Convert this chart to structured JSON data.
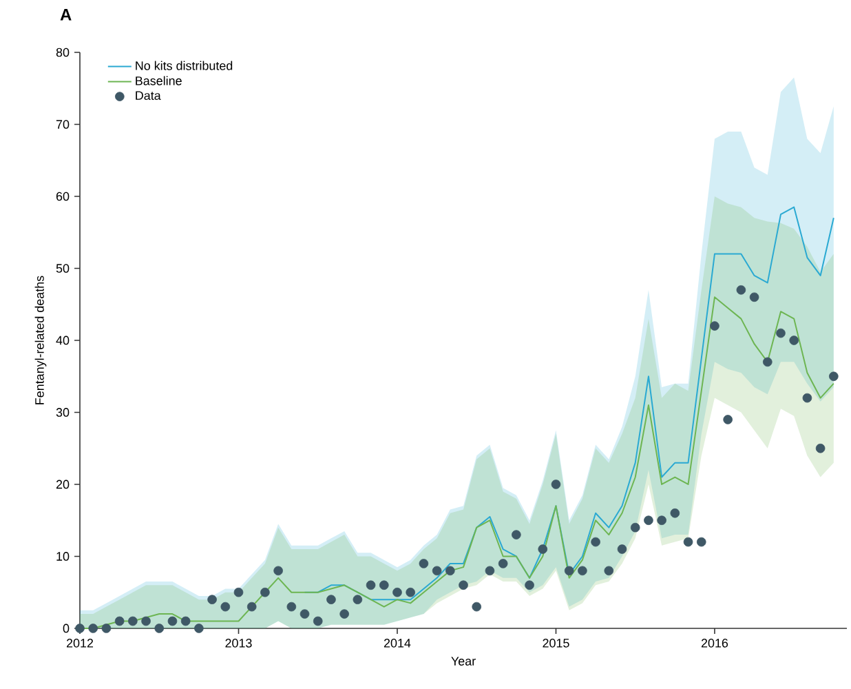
{
  "chart_data": {
    "type": "line",
    "title": "A",
    "xlabel": "Year",
    "ylabel": "Fentanyl-related deaths",
    "x": [
      "2012-01",
      "2012-02",
      "2012-03",
      "2012-04",
      "2012-05",
      "2012-06",
      "2012-07",
      "2012-08",
      "2012-09",
      "2012-10",
      "2012-11",
      "2012-12",
      "2013-01",
      "2013-02",
      "2013-03",
      "2013-04",
      "2013-05",
      "2013-06",
      "2013-07",
      "2013-08",
      "2013-09",
      "2013-10",
      "2013-11",
      "2013-12",
      "2014-01",
      "2014-02",
      "2014-03",
      "2014-04",
      "2014-05",
      "2014-06",
      "2014-07",
      "2014-08",
      "2014-09",
      "2014-10",
      "2014-11",
      "2014-12",
      "2015-01",
      "2015-02",
      "2015-03",
      "2015-04",
      "2015-05",
      "2015-06",
      "2015-07",
      "2015-08",
      "2015-09",
      "2015-10",
      "2015-11",
      "2015-12",
      "2016-01",
      "2016-02",
      "2016-03",
      "2016-04",
      "2016-05",
      "2016-06",
      "2016-07",
      "2016-08",
      "2016-09",
      "2016-10"
    ],
    "series": [
      {
        "name": "No kits distributed",
        "color": "#2aa9d2",
        "values": [
          null,
          null,
          null,
          null,
          null,
          null,
          null,
          null,
          null,
          null,
          null,
          null,
          null,
          null,
          null,
          null,
          null,
          5,
          5,
          6,
          6,
          5,
          4,
          4,
          4,
          4,
          5.5,
          7,
          9,
          9,
          14,
          15.5,
          11,
          10,
          7,
          11,
          17,
          7.5,
          10,
          16,
          14,
          17,
          23,
          35,
          21,
          23,
          23,
          37.5,
          52,
          52,
          52,
          49,
          48,
          57.5,
          58.5,
          51.5,
          49,
          57
        ],
        "lower": [
          0,
          0,
          0,
          0,
          0,
          0,
          0,
          0,
          0,
          0,
          0,
          0,
          0,
          0,
          0,
          1,
          0,
          0,
          0,
          0.5,
          0.5,
          0.5,
          0.5,
          0.5,
          1,
          1.5,
          2,
          4,
          5,
          6,
          6.5,
          8,
          7,
          7,
          5,
          6,
          8.5,
          3,
          4,
          6.5,
          7,
          10,
          13.5,
          22,
          12.5,
          13,
          13,
          27,
          37,
          36,
          35.5,
          33.5,
          32.5,
          37,
          37,
          34,
          31.5,
          33.5
        ],
        "upper": [
          2.5,
          2.5,
          3.5,
          4.5,
          5.5,
          6.5,
          6.5,
          6.5,
          5.5,
          4.5,
          4.5,
          5.5,
          5.5,
          7.5,
          9.5,
          14.5,
          11.5,
          11.5,
          11.5,
          12.5,
          13.5,
          10.5,
          10.5,
          9.5,
          8.5,
          9.5,
          11.5,
          13,
          16.5,
          17,
          24,
          25.5,
          19.5,
          18.5,
          15,
          20.5,
          27.5,
          15,
          18.5,
          25.5,
          23.5,
          28,
          35,
          47,
          33.5,
          34,
          34,
          52,
          68,
          69,
          69,
          64,
          63,
          74.5,
          76.5,
          68,
          66,
          72.5
        ]
      },
      {
        "name": "Baseline",
        "color": "#6db552",
        "values": [
          0,
          0,
          0.5,
          1,
          1,
          1.5,
          2,
          2,
          1,
          1,
          1,
          1,
          1,
          3,
          5,
          7,
          5,
          5,
          5,
          5.5,
          6,
          5,
          4,
          3,
          4,
          3.5,
          5,
          6.5,
          8,
          8.5,
          14,
          15,
          10,
          10,
          7,
          10,
          17,
          7,
          9.5,
          15,
          13,
          16,
          21,
          31,
          20,
          21,
          20,
          33,
          46,
          44.5,
          43,
          39.5,
          37,
          44,
          43,
          35.5,
          32,
          34
        ],
        "lower": [
          0,
          0,
          0,
          0,
          0,
          0,
          0,
          0,
          0,
          0,
          0,
          0,
          0,
          0,
          0,
          1,
          0,
          0,
          0,
          0.5,
          0.5,
          0.5,
          0.5,
          0.5,
          1,
          1.5,
          2,
          3.5,
          4.5,
          5.5,
          6,
          7.5,
          6.5,
          6.5,
          4.5,
          5.5,
          8,
          2.5,
          3.5,
          6,
          6.5,
          9,
          12.5,
          20,
          11.5,
          12,
          12.5,
          24,
          32,
          31,
          30,
          27.5,
          25,
          30.5,
          29.5,
          24,
          21,
          23
        ],
        "upper": [
          2,
          2,
          3,
          4,
          5,
          6,
          6,
          6,
          5,
          4,
          4,
          5,
          5,
          7,
          9,
          14,
          11,
          11,
          11,
          12,
          13,
          10,
          10,
          9,
          8,
          9,
          11,
          12.5,
          16,
          16.5,
          23.5,
          25,
          19,
          18,
          14.5,
          20,
          27,
          14.5,
          18,
          25,
          23,
          27,
          32,
          43,
          32,
          34,
          33,
          47,
          60,
          59,
          58.5,
          57,
          56.5,
          56.3,
          55.5,
          53,
          49.5,
          52
        ]
      },
      {
        "name": "Data",
        "type": "scatter",
        "color": "#3f5866",
        "marker": "circle",
        "values": [
          0,
          0,
          0,
          1,
          1,
          1,
          0,
          1,
          1,
          0,
          4,
          3,
          5,
          3,
          5,
          8,
          3,
          2,
          1,
          4,
          2,
          4,
          6,
          6,
          5,
          5,
          9,
          8,
          8,
          6,
          3,
          8,
          9,
          13,
          6,
          11,
          20,
          8,
          8,
          12,
          8,
          11,
          14,
          15,
          15,
          16,
          12,
          12,
          42,
          29,
          47,
          46,
          37,
          41,
          40,
          32,
          25,
          35
        ]
      }
    ],
    "xlim": [
      "2012-01",
      "2016-11"
    ],
    "xticks": [
      "2012",
      "2013",
      "2014",
      "2015",
      "2016"
    ],
    "ylim": [
      0,
      80
    ],
    "yticks": [
      0,
      10,
      20,
      30,
      40,
      50,
      60,
      70,
      80
    ],
    "legend": "top left"
  }
}
